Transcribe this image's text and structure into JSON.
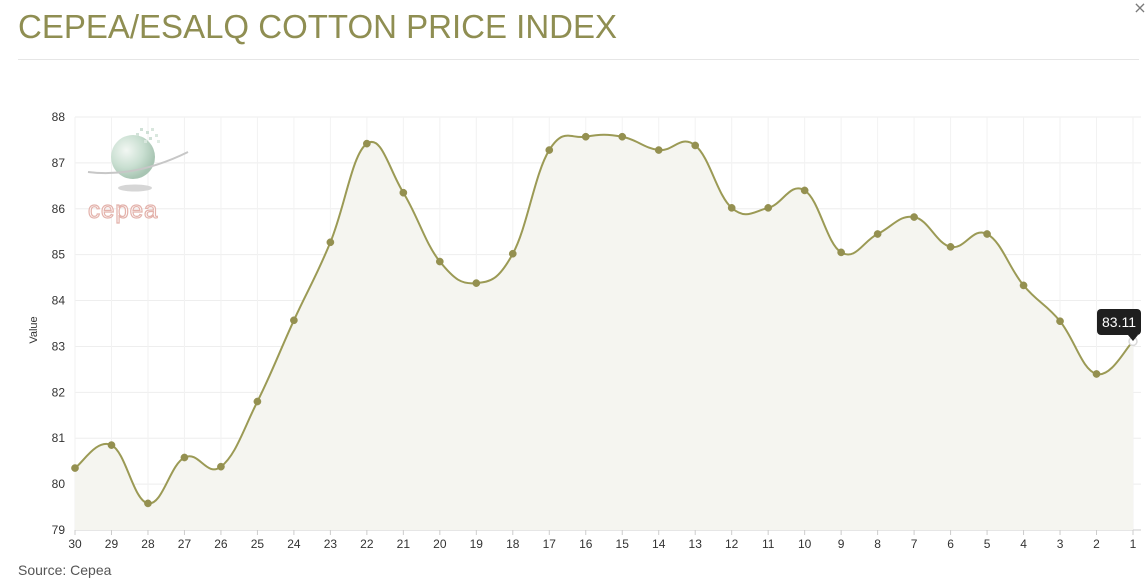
{
  "header": {
    "title": "CEPEA/ESALQ COTTON PRICE INDEX",
    "close_label": "×"
  },
  "footer": {
    "source": "Source: Cepea"
  },
  "logo": {
    "text": "cepea"
  },
  "tooltip": {
    "value": "83.11"
  },
  "colors": {
    "title": "#8f8e52",
    "line": "#9b9a55",
    "point": "#949050",
    "area": "#f5f5f0",
    "tooltip_bg": "#1f1f1f",
    "logo": "#e3b2ab"
  },
  "chart_data": {
    "type": "line",
    "title": "CEPEA/ESALQ COTTON PRICE INDEX",
    "ylabel": "Value",
    "xlabel": "",
    "ylim": [
      79,
      88
    ],
    "yticks": [
      79,
      80,
      81,
      82,
      83,
      84,
      85,
      86,
      87,
      88
    ],
    "grid": true,
    "smooth": true,
    "categories": [
      "30",
      "29",
      "28",
      "27",
      "26",
      "25",
      "24",
      "23",
      "22",
      "21",
      "20",
      "19",
      "18",
      "17",
      "16",
      "15",
      "14",
      "13",
      "12",
      "11",
      "10",
      "9",
      "8",
      "7",
      "6",
      "5",
      "4",
      "3",
      "2",
      "1"
    ],
    "series": [
      {
        "values": [
          80.35,
          80.85,
          79.58,
          80.58,
          80.38,
          81.8,
          83.57,
          85.27,
          87.42,
          86.35,
          84.85,
          84.38,
          85.02,
          87.28,
          87.57,
          87.57,
          87.28,
          87.38,
          86.02,
          86.02,
          86.4,
          85.05,
          85.45,
          85.82,
          85.17,
          85.45,
          84.33,
          83.55,
          82.4,
          83.11
        ]
      }
    ],
    "highlight": {
      "category": "1",
      "value": 83.11
    }
  }
}
